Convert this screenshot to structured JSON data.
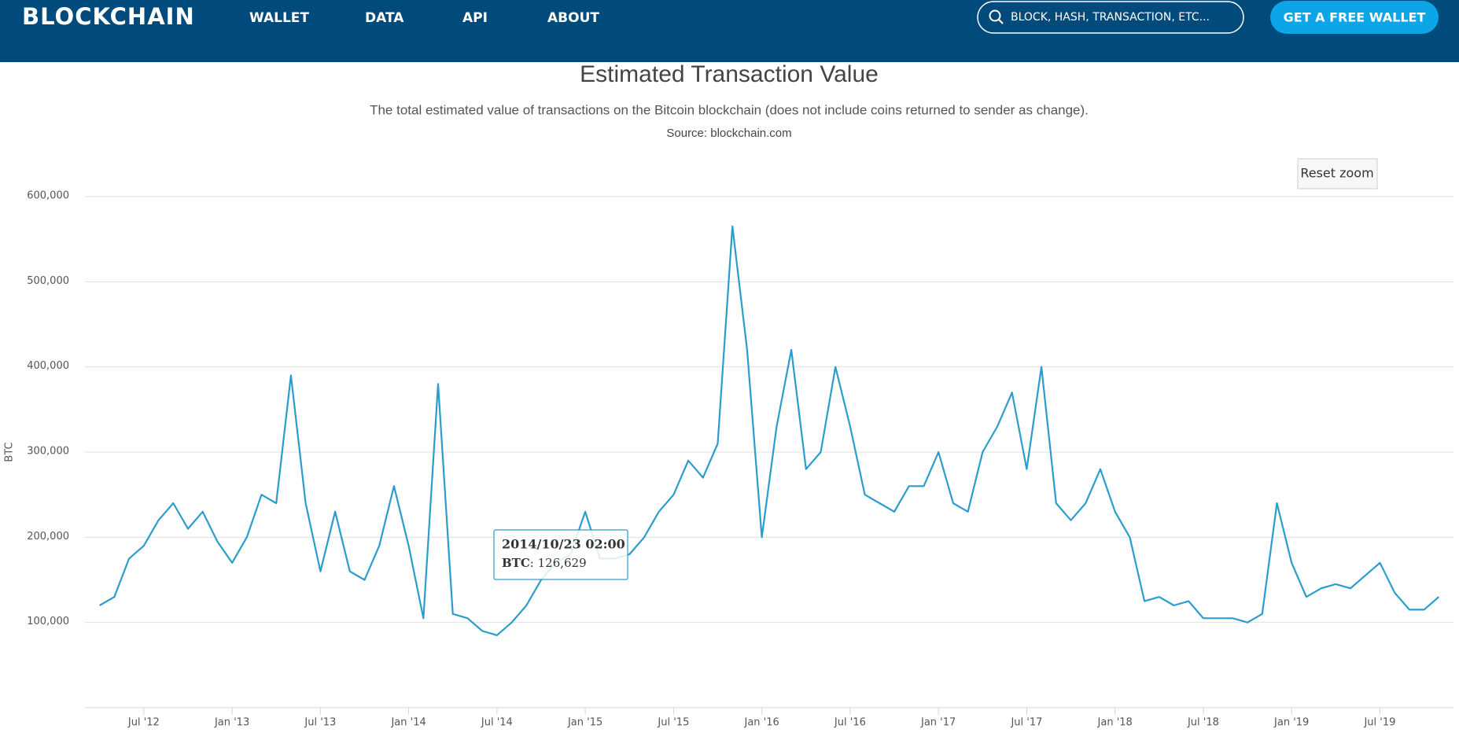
{
  "header": {
    "logo": "BLOCKCHAIN",
    "links": [
      "WALLET",
      "DATA",
      "API",
      "ABOUT"
    ],
    "search": "BLOCK, HASH, TRANSACTION, ETC...",
    "button": "GET A FREE WALLET"
  },
  "reset_zoom": "Reset zoom",
  "tooltip": {
    "date": "2014/10/23 02:00",
    "label": "BTC",
    "value": ": 126,629"
  },
  "chart_data": {
    "type": "line",
    "title": "Estimated Transaction Value",
    "subtitle": "The total estimated value of transactions on the Bitcoin blockchain (does not include coins returned to sender as change).",
    "source": "Source: blockchain.com",
    "y_label": "BTC",
    "grid": true,
    "xlim": [
      "2012-03",
      "2019-12"
    ],
    "ylim": [
      0,
      600000
    ],
    "xticks": [
      {
        "value": "2012-07",
        "label": "Jul '12"
      },
      {
        "value": "2013-01",
        "label": "Jan '13"
      },
      {
        "value": "2013-07",
        "label": "Jul '13"
      },
      {
        "value": "2014-01",
        "label": "Jan '14"
      },
      {
        "value": "2014-07",
        "label": "Jul '14"
      },
      {
        "value": "2015-01",
        "label": "Jan '15"
      },
      {
        "value": "2015-07",
        "label": "Jul '15"
      },
      {
        "value": "2016-01",
        "label": "Jan '16"
      },
      {
        "value": "2016-07",
        "label": "Jul '16"
      },
      {
        "value": "2017-01",
        "label": "Jan '17"
      },
      {
        "value": "2017-07",
        "label": "Jul '17"
      },
      {
        "value": "2018-01",
        "label": "Jan '18"
      },
      {
        "value": "2018-07",
        "label": "Jul '18"
      },
      {
        "value": "2019-01",
        "label": "Jan '19"
      },
      {
        "value": "2019-07",
        "label": "Jul '19"
      }
    ],
    "yticks": [
      {
        "value": 100000,
        "label": "100,000"
      },
      {
        "value": 200000,
        "label": "200,000"
      },
      {
        "value": 300000,
        "label": "300,000"
      },
      {
        "value": 400000,
        "label": "400,000"
      },
      {
        "value": 500000,
        "label": "500,000"
      },
      {
        "value": 600000,
        "label": "600,000"
      }
    ],
    "x": [
      "2012-04",
      "2012-05",
      "2012-06",
      "2012-07",
      "2012-08",
      "2012-09",
      "2012-10",
      "2012-11",
      "2012-12",
      "2013-01",
      "2013-02",
      "2013-03",
      "2013-04",
      "2013-05",
      "2013-06",
      "2013-07",
      "2013-08",
      "2013-09",
      "2013-10",
      "2013-11",
      "2013-12",
      "2014-01",
      "2014-02",
      "2014-03",
      "2014-04",
      "2014-05",
      "2014-06",
      "2014-07",
      "2014-08",
      "2014-09",
      "2014-10",
      "2014-11",
      "2014-12",
      "2015-01",
      "2015-02",
      "2015-03",
      "2015-04",
      "2015-05",
      "2015-06",
      "2015-07",
      "2015-08",
      "2015-09",
      "2015-10",
      "2015-11",
      "2015-12",
      "2016-01",
      "2016-02",
      "2016-03",
      "2016-04",
      "2016-05",
      "2016-06",
      "2016-07",
      "2016-08",
      "2016-09",
      "2016-10",
      "2016-11",
      "2016-12",
      "2017-01",
      "2017-02",
      "2017-03",
      "2017-04",
      "2017-05",
      "2017-06",
      "2017-07",
      "2017-08",
      "2017-09",
      "2017-10",
      "2017-11",
      "2017-12",
      "2018-01",
      "2018-02",
      "2018-03",
      "2018-04",
      "2018-05",
      "2018-06",
      "2018-07",
      "2018-08",
      "2018-09",
      "2018-10",
      "2018-11",
      "2018-12",
      "2019-01",
      "2019-02",
      "2019-03",
      "2019-04",
      "2019-05",
      "2019-06",
      "2019-07",
      "2019-08",
      "2019-09",
      "2019-10",
      "2019-11"
    ],
    "series": [
      {
        "name": "BTC",
        "color": "#2a9dcc",
        "values": [
          120000,
          130000,
          175000,
          190000,
          220000,
          240000,
          210000,
          230000,
          195000,
          170000,
          200000,
          250000,
          240000,
          390000,
          240000,
          160000,
          230000,
          160000,
          150000,
          190000,
          260000,
          190000,
          105000,
          380000,
          110000,
          105000,
          90000,
          85000,
          100000,
          120000,
          150000,
          170000,
          180000,
          230000,
          175000,
          175000,
          180000,
          200000,
          230000,
          250000,
          290000,
          270000,
          310000,
          565000,
          420000,
          200000,
          330000,
          420000,
          280000,
          300000,
          400000,
          330000,
          250000,
          240000,
          230000,
          260000,
          260000,
          300000,
          240000,
          230000,
          300000,
          330000,
          370000,
          280000,
          400000,
          240000,
          220000,
          240000,
          280000,
          230000,
          200000,
          125000,
          130000,
          120000,
          125000,
          105000,
          105000,
          105000,
          100000,
          110000,
          240000,
          170000,
          130000,
          140000,
          145000,
          140000,
          155000,
          170000,
          135000,
          115000,
          115000,
          130000
        ]
      }
    ]
  }
}
